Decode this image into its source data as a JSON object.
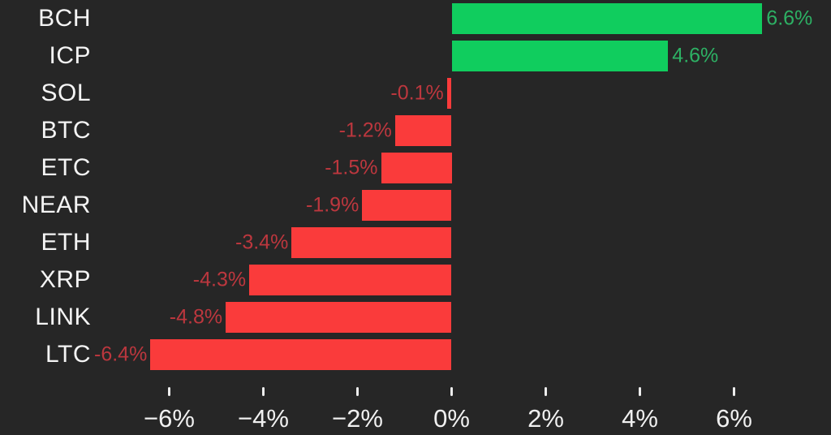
{
  "chart_data": {
    "type": "bar",
    "orientation": "horizontal",
    "title": "",
    "xlabel": "",
    "ylabel": "",
    "grid": false,
    "legend": "none",
    "categories": [
      "BCH",
      "ICP",
      "SOL",
      "BTC",
      "ETC",
      "NEAR",
      "ETH",
      "XRP",
      "LINK",
      "LTC"
    ],
    "values": [
      6.6,
      4.6,
      -0.1,
      -1.2,
      -1.5,
      -1.9,
      -3.4,
      -4.3,
      -4.8,
      -6.4
    ],
    "value_labels": [
      "6.6%",
      "4.6%",
      "-0.1%",
      "-1.2%",
      "-1.5%",
      "-1.9%",
      "-3.4%",
      "-4.3%",
      "-4.8%",
      "-6.4%"
    ],
    "x_tick_values": [
      -6,
      -4,
      -2,
      0,
      2,
      4,
      6
    ],
    "x_tick_labels": [
      "−6%",
      "−4%",
      "−2%",
      "0%",
      "2%",
      "4%",
      "6%"
    ],
    "xlim": [
      -9.6,
      8.1
    ],
    "colors": {
      "background": "#262626",
      "positive_bar": "#10cd5e",
      "negative_bar": "#fa3b3b",
      "positive_label": "#2db164",
      "negative_label": "#bc373e",
      "ticker_text": "#f4f4f4",
      "axis_text": "#f0f0f0",
      "tick_mark": "#ededed"
    }
  }
}
